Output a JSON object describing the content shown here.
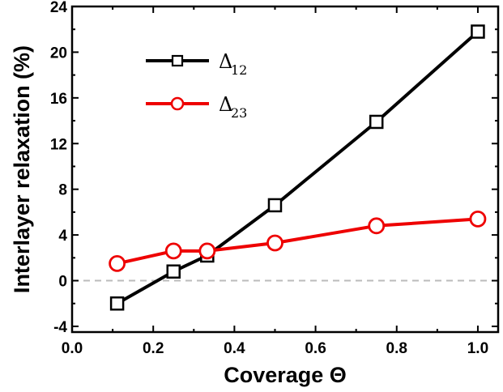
{
  "chart_data": {
    "type": "line",
    "title": "",
    "xlabel": "Coverage Θ",
    "ylabel": "Interlayer relaxation (%)",
    "xlim": [
      0.0,
      1.05
    ],
    "ylim": [
      -4.5,
      24
    ],
    "x_ticks": [
      0.0,
      0.2,
      0.4,
      0.6,
      0.8,
      1.0
    ],
    "x_tick_labels": [
      "0.0",
      "0.2",
      "0.4",
      "0.6",
      "0.8",
      "1.0"
    ],
    "y_ticks": [
      -4,
      0,
      4,
      8,
      12,
      16,
      20,
      24
    ],
    "y_tick_labels": [
      "-4",
      "0",
      "4",
      "8",
      "12",
      "16",
      "20",
      "24"
    ],
    "reference_line": {
      "y": 0,
      "style": "dashed",
      "color": "#bbbbbb"
    },
    "grid": false,
    "legend_position": "upper-left",
    "series": [
      {
        "name": "Δ",
        "subscript": "12",
        "marker": "square",
        "color": "#000000",
        "x": [
          0.111,
          0.25,
          0.333,
          0.5,
          0.75,
          1.0
        ],
        "y": [
          -2.0,
          0.8,
          2.2,
          6.6,
          13.9,
          21.8
        ]
      },
      {
        "name": "Δ",
        "subscript": "23",
        "marker": "circle",
        "color": "#ee0000",
        "x": [
          0.111,
          0.25,
          0.333,
          0.5,
          0.75,
          1.0
        ],
        "y": [
          1.5,
          2.6,
          2.6,
          3.3,
          4.8,
          5.4
        ]
      }
    ]
  }
}
